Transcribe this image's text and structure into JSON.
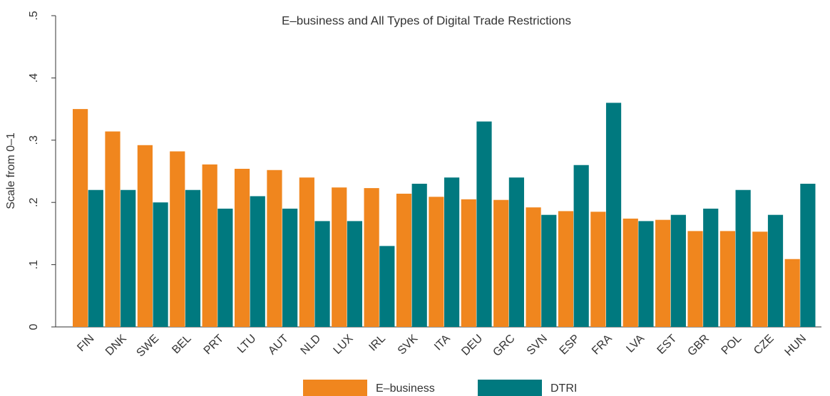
{
  "chart_data": {
    "type": "bar",
    "title": "E–business and All Types of Digital Trade Restrictions",
    "y_label": "Scale from 0–1",
    "categories": [
      "FIN",
      "DNK",
      "SWE",
      "BEL",
      "PRT",
      "LTU",
      "AUT",
      "NLD",
      "LUX",
      "IRL",
      "SVK",
      "ITA",
      "DEU",
      "GRC",
      "SVN",
      "ESP",
      "FRA",
      "LVA",
      "EST",
      "GBR",
      "POL",
      "CZE",
      "HUN"
    ],
    "series": [
      {
        "name": "E–business",
        "color": "#f0861e",
        "values": [
          0.35,
          0.314,
          0.292,
          0.282,
          0.261,
          0.254,
          0.252,
          0.24,
          0.224,
          0.223,
          0.214,
          0.209,
          0.205,
          0.204,
          0.192,
          0.186,
          0.185,
          0.174,
          0.172,
          0.154,
          0.154,
          0.153,
          0.109
        ]
      },
      {
        "name": "DTRI",
        "color": "#00797f",
        "values": [
          0.22,
          0.22,
          0.2,
          0.22,
          0.19,
          0.21,
          0.19,
          0.17,
          0.17,
          0.13,
          0.23,
          0.24,
          0.33,
          0.24,
          0.18,
          0.26,
          0.36,
          0.17,
          0.18,
          0.19,
          0.22,
          0.18,
          0.23
        ]
      }
    ],
    "ylim": [
      0,
      0.5
    ],
    "yticks": [
      0,
      {
        "value": 0.1,
        "label": ".1"
      },
      {
        "value": 0.2,
        "label": ".2"
      },
      {
        "value": 0.3,
        "label": ".3"
      },
      {
        "value": 0.4,
        "label": ".4"
      },
      {
        "value": 0.5,
        "label": ".5"
      }
    ],
    "legend": "bottom"
  }
}
